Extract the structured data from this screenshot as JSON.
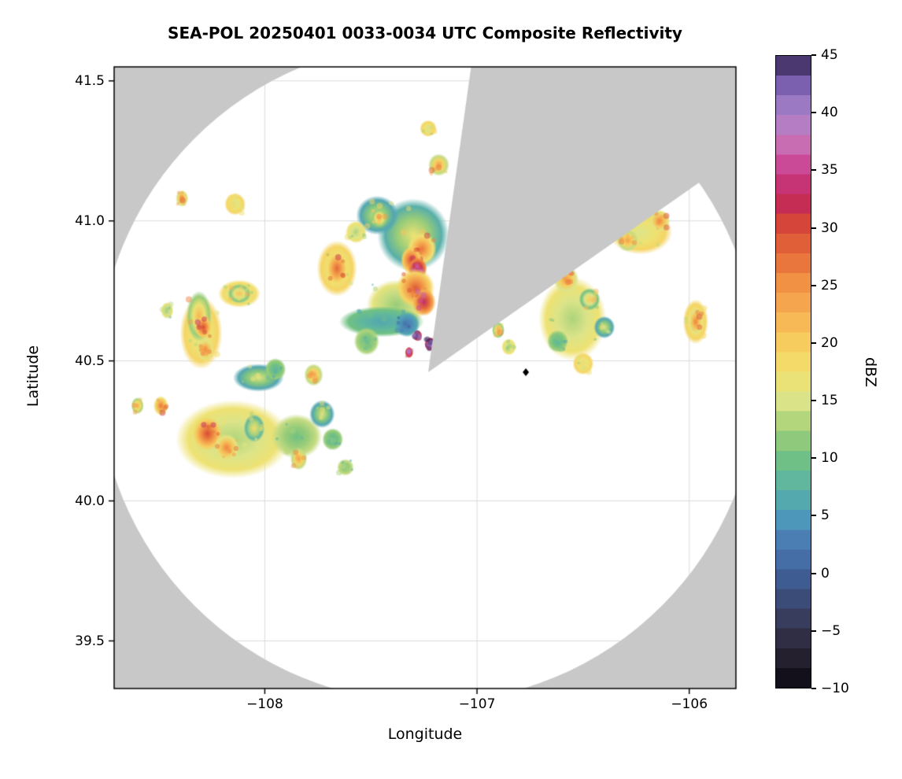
{
  "chart_data": {
    "type": "heatmap",
    "title": "SEA-POL 20250401 0033-0034 UTC Composite Reflectivity",
    "xlabel": "Longitude",
    "ylabel": "Latitude",
    "xlim": [
      -108.71,
      -105.78
    ],
    "ylim": [
      39.33,
      41.55
    ],
    "xticks": [
      -108,
      -107,
      -106
    ],
    "yticks": [
      39.5,
      40.0,
      40.5,
      41.0,
      41.5
    ],
    "grid": true,
    "grid_color": "#dcdcdc",
    "background_outside_range": "#c8c8c8",
    "background_inside_range": "#ffffff",
    "radar": {
      "center_lon": -107.23,
      "center_lat": 40.46,
      "range_radius_deg_lat": 1.18,
      "blocked_sector_azimuth_deg": [
        8,
        55
      ]
    },
    "marker": {
      "lon": -106.77,
      "lat": 40.46,
      "shape": "diamond",
      "color": "#000000"
    },
    "colorbar": {
      "label": "dBZ",
      "min": -10,
      "max": 45,
      "ticks": [
        -10,
        -5,
        0,
        5,
        10,
        15,
        20,
        25,
        30,
        35,
        40,
        45
      ]
    },
    "colormap": [
      [
        -10,
        "#0b0612"
      ],
      [
        -7.5,
        "#231f2c"
      ],
      [
        -5,
        "#35344e"
      ],
      [
        -2.5,
        "#3c4a74"
      ],
      [
        0,
        "#40619b"
      ],
      [
        2.5,
        "#4b7ab2"
      ],
      [
        5,
        "#4d9dbb"
      ],
      [
        7.5,
        "#5bb4a5"
      ],
      [
        10,
        "#71c183"
      ],
      [
        12.5,
        "#a3d077"
      ],
      [
        15,
        "#dce489"
      ],
      [
        17.5,
        "#f2e16e"
      ],
      [
        20,
        "#f7cd5f"
      ],
      [
        22.5,
        "#f7b153"
      ],
      [
        25,
        "#f19445"
      ],
      [
        27.5,
        "#e76f3b"
      ],
      [
        30,
        "#d94a34"
      ],
      [
        32.5,
        "#c1285b"
      ],
      [
        35,
        "#cb3f8e"
      ],
      [
        37.5,
        "#c972b7"
      ],
      [
        40,
        "#a884cb"
      ],
      [
        42.5,
        "#7a5fae"
      ],
      [
        45,
        "#32234f"
      ]
    ],
    "echoes": [
      {
        "lon": -107.38,
        "lat": 40.7,
        "rx": 0.14,
        "ry": 0.09,
        "dbz": 12
      },
      {
        "lon": -107.45,
        "lat": 40.64,
        "rx": 0.2,
        "ry": 0.055,
        "dbz": 6
      },
      {
        "lon": -107.52,
        "lat": 40.57,
        "rx": 0.06,
        "ry": 0.05,
        "dbz": 9
      },
      {
        "lon": -107.3,
        "lat": 40.95,
        "rx": 0.17,
        "ry": 0.13,
        "dbz": 17
      },
      {
        "lon": -107.26,
        "lat": 40.9,
        "rx": 0.07,
        "ry": 0.06,
        "dbz": 27
      },
      {
        "lon": -107.31,
        "lat": 40.86,
        "rx": 0.05,
        "ry": 0.05,
        "dbz": 30
      },
      {
        "lon": -107.28,
        "lat": 40.83,
        "rx": 0.045,
        "ry": 0.04,
        "dbz": 36
      },
      {
        "lon": -107.29,
        "lat": 40.76,
        "rx": 0.09,
        "ry": 0.07,
        "dbz": 29
      },
      {
        "lon": -107.25,
        "lat": 40.71,
        "rx": 0.055,
        "ry": 0.05,
        "dbz": 33
      },
      {
        "lon": -107.33,
        "lat": 40.63,
        "rx": 0.06,
        "ry": 0.045,
        "dbz": 2
      },
      {
        "lon": -107.22,
        "lat": 40.56,
        "rx": 0.028,
        "ry": 0.025,
        "dbz": 43
      },
      {
        "lon": -107.28,
        "lat": 40.59,
        "rx": 0.022,
        "ry": 0.02,
        "dbz": 41
      },
      {
        "lon": -107.32,
        "lat": 40.53,
        "rx": 0.02,
        "ry": 0.02,
        "dbz": 40
      },
      {
        "lon": -107.23,
        "lat": 41.33,
        "rx": 0.04,
        "ry": 0.03,
        "dbz": 15
      },
      {
        "lon": -107.18,
        "lat": 41.2,
        "rx": 0.05,
        "ry": 0.04,
        "dbz": 24
      },
      {
        "lon": -107.47,
        "lat": 41.02,
        "rx": 0.1,
        "ry": 0.07,
        "dbz": 16
      },
      {
        "lon": -107.46,
        "lat": 41.01,
        "rx": 0.04,
        "ry": 0.035,
        "dbz": 22
      },
      {
        "lon": -107.57,
        "lat": 40.96,
        "rx": 0.05,
        "ry": 0.04,
        "dbz": 13
      },
      {
        "lon": -107.66,
        "lat": 40.83,
        "rx": 0.095,
        "ry": 0.1,
        "dbz": 15
      },
      {
        "lon": -107.66,
        "lat": 40.83,
        "rx": 0.055,
        "ry": 0.065,
        "dbz": 28
      },
      {
        "lon": -108.12,
        "lat": 40.74,
        "rx": 0.1,
        "ry": 0.05,
        "dbz": 14
      },
      {
        "lon": -108.12,
        "lat": 40.74,
        "rx": 0.055,
        "ry": 0.035,
        "dbz": 21
      },
      {
        "lon": -108.14,
        "lat": 41.06,
        "rx": 0.05,
        "ry": 0.04,
        "dbz": 15
      },
      {
        "lon": -108.39,
        "lat": 41.08,
        "rx": 0.03,
        "ry": 0.03,
        "dbz": 25
      },
      {
        "lon": -108.46,
        "lat": 40.68,
        "rx": 0.03,
        "ry": 0.03,
        "dbz": 12
      },
      {
        "lon": -108.3,
        "lat": 40.6,
        "rx": 0.1,
        "ry": 0.13,
        "dbz": 15
      },
      {
        "lon": -108.31,
        "lat": 40.66,
        "rx": 0.06,
        "ry": 0.09,
        "dbz": 22
      },
      {
        "lon": -108.29,
        "lat": 40.62,
        "rx": 0.04,
        "ry": 0.04,
        "dbz": 30
      },
      {
        "lon": -108.28,
        "lat": 40.54,
        "rx": 0.04,
        "ry": 0.04,
        "dbz": 26
      },
      {
        "lon": -108.49,
        "lat": 40.34,
        "rx": 0.035,
        "ry": 0.035,
        "dbz": 27
      },
      {
        "lon": -108.6,
        "lat": 40.34,
        "rx": 0.03,
        "ry": 0.03,
        "dbz": 23
      },
      {
        "lon": -108.03,
        "lat": 40.44,
        "rx": 0.12,
        "ry": 0.05,
        "dbz": 16
      },
      {
        "lon": -107.95,
        "lat": 40.47,
        "rx": 0.05,
        "ry": 0.04,
        "dbz": 8
      },
      {
        "lon": -107.77,
        "lat": 40.45,
        "rx": 0.045,
        "ry": 0.04,
        "dbz": 24
      },
      {
        "lon": -108.15,
        "lat": 40.22,
        "rx": 0.27,
        "ry": 0.14,
        "dbz": 13
      },
      {
        "lon": -108.27,
        "lat": 40.24,
        "rx": 0.07,
        "ry": 0.06,
        "dbz": 30
      },
      {
        "lon": -108.18,
        "lat": 40.19,
        "rx": 0.06,
        "ry": 0.05,
        "dbz": 26
      },
      {
        "lon": -108.05,
        "lat": 40.26,
        "rx": 0.05,
        "ry": 0.05,
        "dbz": 18
      },
      {
        "lon": -107.85,
        "lat": 40.23,
        "rx": 0.12,
        "ry": 0.08,
        "dbz": 10
      },
      {
        "lon": -107.73,
        "lat": 40.31,
        "rx": 0.06,
        "ry": 0.05,
        "dbz": 16
      },
      {
        "lon": -107.84,
        "lat": 40.15,
        "rx": 0.04,
        "ry": 0.04,
        "dbz": 24
      },
      {
        "lon": -107.68,
        "lat": 40.22,
        "rx": 0.05,
        "ry": 0.04,
        "dbz": 8
      },
      {
        "lon": -107.62,
        "lat": 40.12,
        "rx": 0.04,
        "ry": 0.03,
        "dbz": 10
      },
      {
        "lon": -106.9,
        "lat": 40.61,
        "rx": 0.03,
        "ry": 0.03,
        "dbz": 22
      },
      {
        "lon": -106.85,
        "lat": 40.55,
        "rx": 0.035,
        "ry": 0.03,
        "dbz": 13
      },
      {
        "lon": -106.55,
        "lat": 40.65,
        "rx": 0.16,
        "ry": 0.15,
        "dbz": 13
      },
      {
        "lon": -106.58,
        "lat": 40.79,
        "rx": 0.06,
        "ry": 0.05,
        "dbz": 25
      },
      {
        "lon": -106.47,
        "lat": 40.72,
        "rx": 0.05,
        "ry": 0.04,
        "dbz": 20
      },
      {
        "lon": -106.62,
        "lat": 40.57,
        "rx": 0.05,
        "ry": 0.04,
        "dbz": 8
      },
      {
        "lon": -106.5,
        "lat": 40.49,
        "rx": 0.05,
        "ry": 0.04,
        "dbz": 15
      },
      {
        "lon": -106.4,
        "lat": 40.62,
        "rx": 0.05,
        "ry": 0.04,
        "dbz": 16
      },
      {
        "lon": -106.23,
        "lat": 40.96,
        "rx": 0.15,
        "ry": 0.08,
        "dbz": 15
      },
      {
        "lon": -106.29,
        "lat": 40.93,
        "rx": 0.05,
        "ry": 0.04,
        "dbz": 24
      },
      {
        "lon": -106.14,
        "lat": 41.0,
        "rx": 0.05,
        "ry": 0.04,
        "dbz": 26
      },
      {
        "lon": -105.97,
        "lat": 40.64,
        "rx": 0.06,
        "ry": 0.08,
        "dbz": 15
      },
      {
        "lon": -105.97,
        "lat": 40.64,
        "rx": 0.035,
        "ry": 0.05,
        "dbz": 26
      }
    ]
  }
}
